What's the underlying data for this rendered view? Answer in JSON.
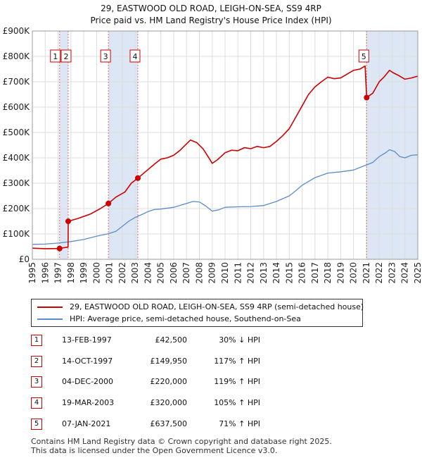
{
  "title_line1": "29, EASTWOOD OLD ROAD, LEIGH-ON-SEA, SS9 4RP",
  "title_line2": "Price paid vs. HM Land Registry's House Price Index (HPI)",
  "chart_data": {
    "type": "line",
    "xlim": [
      1995,
      2025
    ],
    "ylim": [
      0,
      900000
    ],
    "x_ticks": [
      1995,
      1996,
      1997,
      1998,
      1999,
      2000,
      2001,
      2002,
      2003,
      2004,
      2005,
      2006,
      2007,
      2008,
      2009,
      2010,
      2011,
      2012,
      2013,
      2014,
      2015,
      2016,
      2017,
      2018,
      2019,
      2020,
      2021,
      2022,
      2023,
      2024,
      2025
    ],
    "y_ticks": [
      {
        "value": 0,
        "label": "£0"
      },
      {
        "value": 100000,
        "label": "£100K"
      },
      {
        "value": 200000,
        "label": "£200K"
      },
      {
        "value": 300000,
        "label": "£300K"
      },
      {
        "value": 400000,
        "label": "£400K"
      },
      {
        "value": 500000,
        "label": "£500K"
      },
      {
        "value": 600000,
        "label": "£600K"
      },
      {
        "value": 700000,
        "label": "£700K"
      },
      {
        "value": 800000,
        "label": "£800K"
      },
      {
        "value": 900000,
        "label": "£900K"
      }
    ],
    "grid": true,
    "colors": {
      "price": "#cc0000",
      "hpi": "#5b8cc9",
      "shade": "#dde6f5",
      "vline": "#e07070"
    },
    "series": [
      {
        "key": "price",
        "name": "29, EASTWOOD OLD ROAD, LEIGH-ON-SEA, SS9 4RP (semi-detached house)",
        "points": [
          [
            1995.0,
            44000
          ],
          [
            1996.0,
            42000
          ],
          [
            1997.12,
            42500
          ],
          [
            1997.5,
            46000
          ],
          [
            1997.78,
            48000
          ],
          [
            1997.79,
            149950
          ],
          [
            1998.5,
            160000
          ],
          [
            1999.5,
            178000
          ],
          [
            2000.3,
            200000
          ],
          [
            2000.92,
            220000
          ],
          [
            2001.5,
            245000
          ],
          [
            2002.2,
            265000
          ],
          [
            2002.7,
            300000
          ],
          [
            2003.21,
            320000
          ],
          [
            2003.8,
            345000
          ],
          [
            2004.5,
            375000
          ],
          [
            2005.0,
            395000
          ],
          [
            2005.5,
            400000
          ],
          [
            2006.0,
            410000
          ],
          [
            2006.5,
            430000
          ],
          [
            2007.0,
            455000
          ],
          [
            2007.3,
            470000
          ],
          [
            2007.8,
            460000
          ],
          [
            2008.3,
            435000
          ],
          [
            2008.8,
            395000
          ],
          [
            2009.0,
            378000
          ],
          [
            2009.4,
            392000
          ],
          [
            2010.0,
            420000
          ],
          [
            2010.5,
            430000
          ],
          [
            2011.0,
            428000
          ],
          [
            2011.5,
            440000
          ],
          [
            2012.0,
            436000
          ],
          [
            2012.5,
            445000
          ],
          [
            2013.0,
            440000
          ],
          [
            2013.5,
            445000
          ],
          [
            2014.0,
            465000
          ],
          [
            2014.5,
            488000
          ],
          [
            2015.0,
            515000
          ],
          [
            2015.5,
            560000
          ],
          [
            2016.0,
            605000
          ],
          [
            2016.5,
            650000
          ],
          [
            2017.0,
            680000
          ],
          [
            2017.5,
            700000
          ],
          [
            2018.0,
            718000
          ],
          [
            2018.5,
            712000
          ],
          [
            2019.0,
            715000
          ],
          [
            2019.5,
            730000
          ],
          [
            2020.0,
            745000
          ],
          [
            2020.5,
            750000
          ],
          [
            2020.9,
            762000
          ],
          [
            2021.02,
            637500
          ],
          [
            2021.5,
            655000
          ],
          [
            2022.0,
            700000
          ],
          [
            2022.4,
            720000
          ],
          [
            2022.8,
            745000
          ],
          [
            2023.1,
            735000
          ],
          [
            2023.5,
            725000
          ],
          [
            2024.0,
            710000
          ],
          [
            2024.5,
            715000
          ],
          [
            2025.0,
            722000
          ]
        ]
      },
      {
        "key": "hpi",
        "name": "HPI: Average price, semi-detached house, Southend-on-Sea",
        "points": [
          [
            1995.0,
            59000
          ],
          [
            1996.0,
            60000
          ],
          [
            1997.0,
            64000
          ],
          [
            1998.0,
            70000
          ],
          [
            1999.0,
            78000
          ],
          [
            2000.0,
            91000
          ],
          [
            2000.92,
            101000
          ],
          [
            2001.5,
            110000
          ],
          [
            2002.0,
            130000
          ],
          [
            2002.5,
            150000
          ],
          [
            2003.0,
            165000
          ],
          [
            2003.5,
            176000
          ],
          [
            2004.0,
            188000
          ],
          [
            2004.5,
            196000
          ],
          [
            2005.0,
            198000
          ],
          [
            2006.0,
            205000
          ],
          [
            2007.0,
            220000
          ],
          [
            2007.5,
            228000
          ],
          [
            2008.0,
            226000
          ],
          [
            2008.5,
            210000
          ],
          [
            2009.0,
            190000
          ],
          [
            2009.5,
            195000
          ],
          [
            2010.0,
            205000
          ],
          [
            2011.0,
            207000
          ],
          [
            2012.0,
            208000
          ],
          [
            2013.0,
            212000
          ],
          [
            2014.0,
            228000
          ],
          [
            2015.0,
            250000
          ],
          [
            2015.5,
            270000
          ],
          [
            2016.0,
            292000
          ],
          [
            2017.0,
            322000
          ],
          [
            2018.0,
            340000
          ],
          [
            2019.0,
            345000
          ],
          [
            2020.0,
            352000
          ],
          [
            2021.0,
            372000
          ],
          [
            2021.5,
            382000
          ],
          [
            2022.0,
            405000
          ],
          [
            2022.5,
            420000
          ],
          [
            2022.8,
            432000
          ],
          [
            2023.2,
            425000
          ],
          [
            2023.6,
            405000
          ],
          [
            2024.0,
            400000
          ],
          [
            2024.5,
            410000
          ],
          [
            2025.0,
            412000
          ]
        ]
      }
    ],
    "sales": [
      {
        "num": "1",
        "x": 1997.12,
        "price_value": 42500,
        "date": "13-FEB-1997",
        "price": "£42,500",
        "hpi": "30% ↓ HPI"
      },
      {
        "num": "2",
        "x": 1997.79,
        "price_value": 149950,
        "date": "14-OCT-1997",
        "price": "£149,950",
        "hpi": "117% ↑ HPI"
      },
      {
        "num": "3",
        "x": 2000.92,
        "price_value": 220000,
        "date": "04-DEC-2000",
        "price": "£220,000",
        "hpi": "119% ↑ HPI"
      },
      {
        "num": "4",
        "x": 2003.21,
        "price_value": 320000,
        "date": "19-MAR-2003",
        "price": "£320,000",
        "hpi": "105% ↑ HPI"
      },
      {
        "num": "5",
        "x": 2021.02,
        "price_value": 637500,
        "date": "07-JAN-2021",
        "price": "£637,500",
        "hpi": "71% ↑ HPI"
      }
    ],
    "shaded_ranges": [
      [
        1997.12,
        1997.79
      ],
      [
        2000.92,
        2003.21
      ],
      [
        2021.02,
        2025.0
      ]
    ]
  },
  "footer_line1": "Contains HM Land Registry data © Crown copyright and database right 2025.",
  "footer_line2": "This data is licensed under the Open Government Licence v3.0."
}
